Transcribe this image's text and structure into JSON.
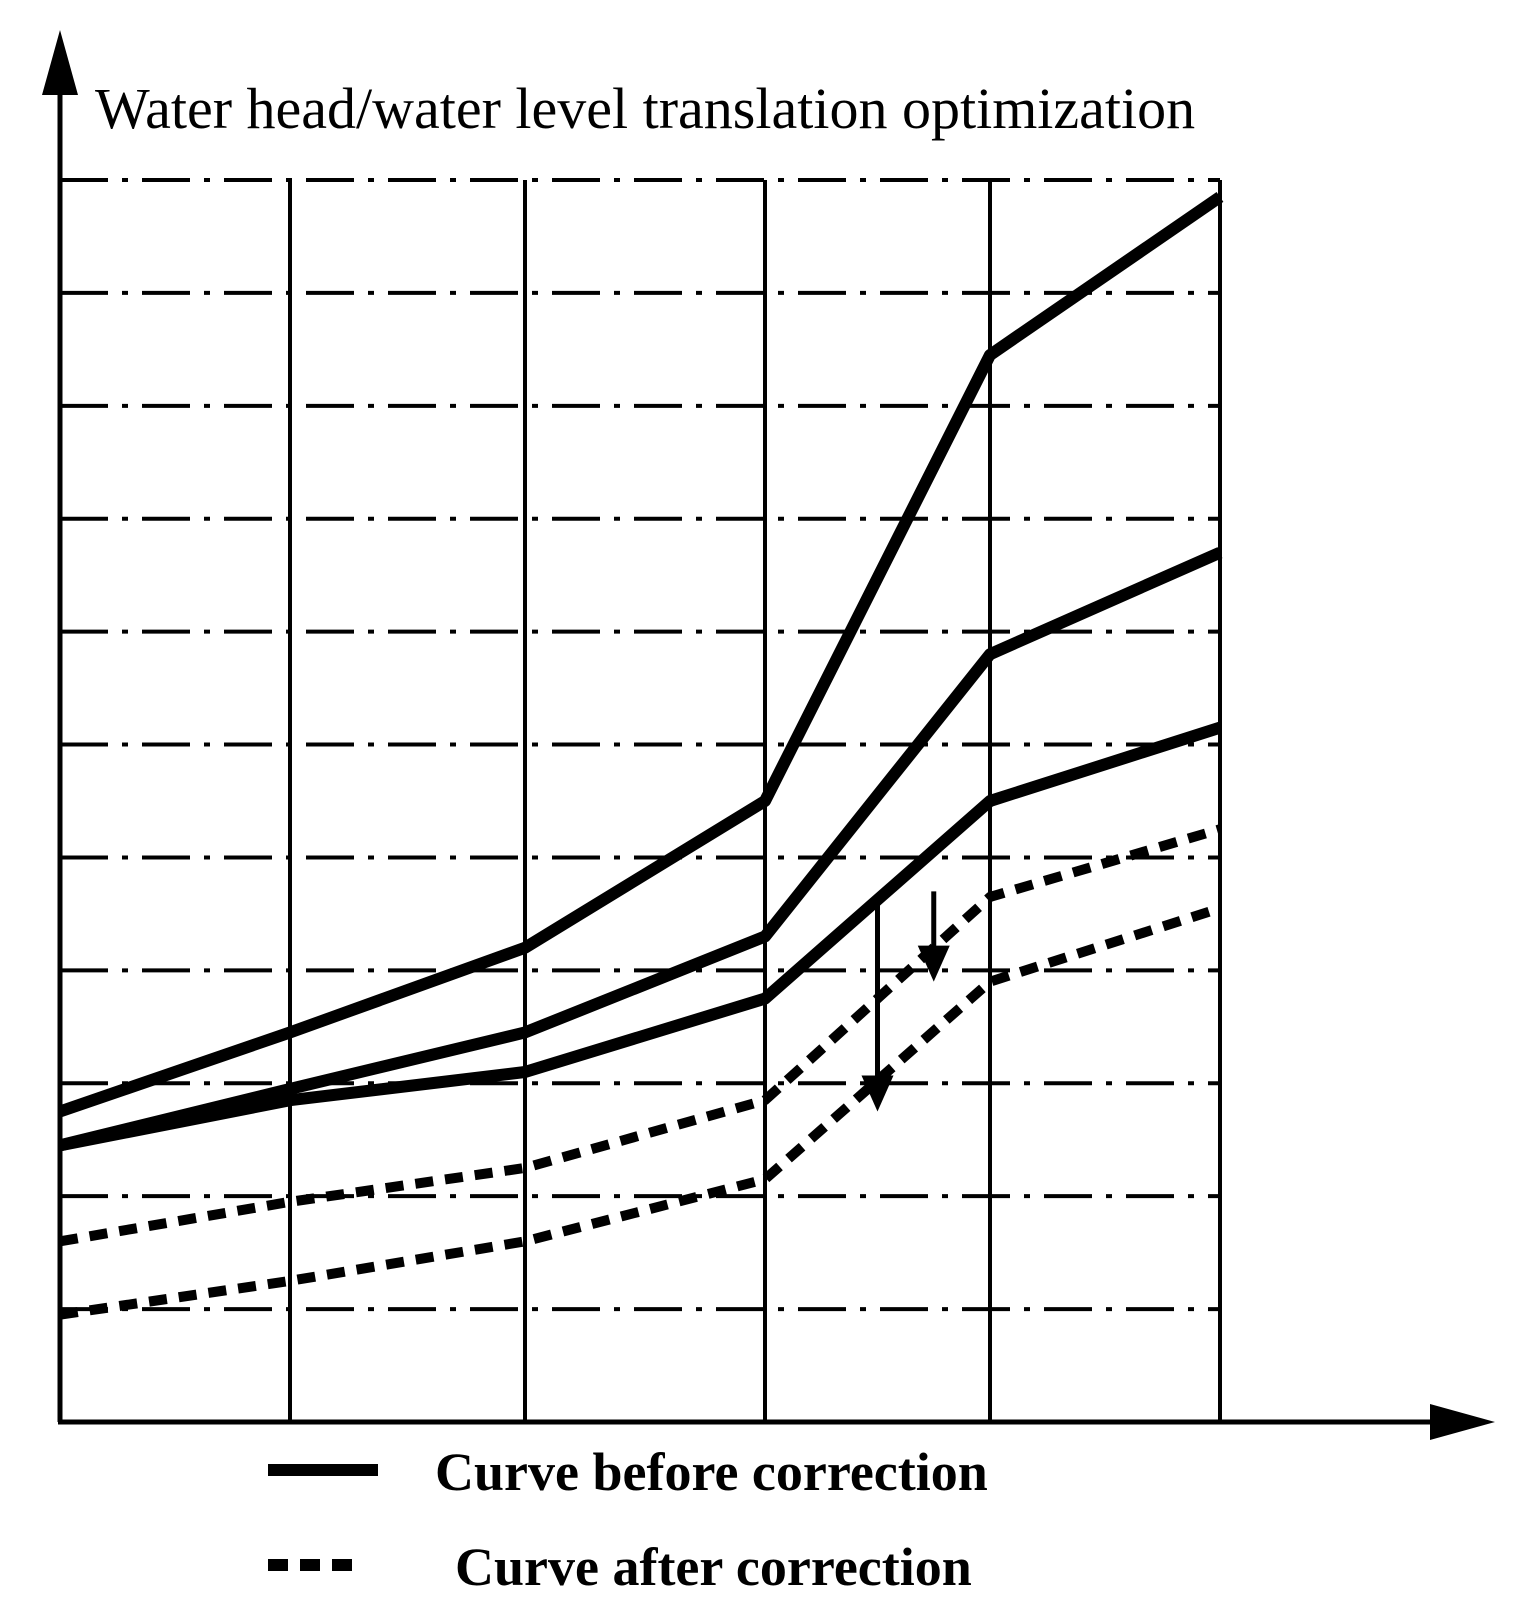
{
  "chart_data": {
    "type": "line",
    "title": "Water head/water level translation optimization",
    "xlabel": "",
    "ylabel": "",
    "x": [
      0,
      1,
      2,
      3,
      4,
      5
    ],
    "xlim": [
      0,
      5
    ],
    "ylim": [
      0,
      11
    ],
    "grid": true,
    "legend_position": "bottom",
    "ink_color": "#000000",
    "background_color": "#ffffff",
    "series": [
      {
        "name": "Curve before correction",
        "style": "solid",
        "values": [
          2.75,
          3.45,
          4.2,
          5.5,
          9.45,
          10.85
        ]
      },
      {
        "name": "Curve before correction",
        "style": "solid",
        "values": [
          2.45,
          2.95,
          3.45,
          4.3,
          6.8,
          7.7
        ]
      },
      {
        "name": "Curve before correction",
        "style": "solid",
        "values": [
          2.45,
          2.85,
          3.1,
          3.75,
          5.5,
          6.15
        ]
      },
      {
        "name": "Curve after correction",
        "style": "dashed",
        "values": [
          1.6,
          1.95,
          2.25,
          2.85,
          4.65,
          5.25
        ]
      },
      {
        "name": "Curve after correction",
        "style": "dashed",
        "values": [
          0.95,
          1.25,
          1.6,
          2.15,
          3.9,
          4.55
        ]
      }
    ],
    "annotations": [
      {
        "type": "arrow",
        "label": "",
        "x": 3.5,
        "from": 4.6,
        "to": 2.75
      },
      {
        "type": "arrow",
        "label": "",
        "x": 3.75,
        "from": 4.7,
        "to": 3.9
      }
    ],
    "legend": [
      {
        "label": "Curve before correction",
        "style": "solid"
      },
      {
        "label": "Curve after correction",
        "style": "dashed"
      }
    ]
  }
}
